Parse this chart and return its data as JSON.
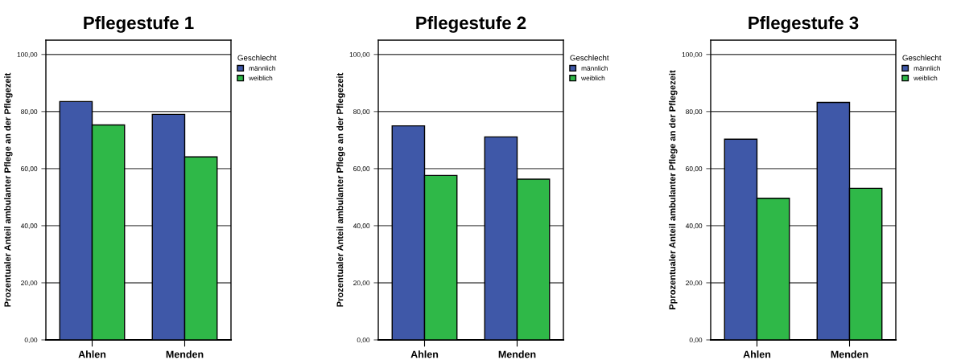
{
  "chart_data": [
    {
      "type": "bar",
      "title": "Pflegestufe 1",
      "ylabel": "Prozentualer Anteil ambulanter Pflege an der Pflegezeit",
      "legend_title": "Geschlecht",
      "legend": "top right",
      "grid": "y",
      "categories": [
        "Ahlen",
        "Menden"
      ],
      "series": [
        {
          "name": "männlich",
          "color": "#3f58a8",
          "values": [
            83.5,
            79.0
          ]
        },
        {
          "name": "weiblich",
          "color": "#2fb848",
          "values": [
            75.3,
            64.1
          ]
        }
      ],
      "ylim": [
        0,
        105
      ],
      "yticks": [
        {
          "value": 0,
          "label": "0,00"
        },
        {
          "value": 20,
          "label": "20,00"
        },
        {
          "value": 40,
          "label": "40,00"
        },
        {
          "value": 60,
          "label": "60,00"
        },
        {
          "value": 80,
          "label": "80,00"
        },
        {
          "value": 100,
          "label": "100,00"
        }
      ]
    },
    {
      "type": "bar",
      "title": "Pflegestufe 2",
      "ylabel": "Prozentualer Anteil ambulanter Pflege an der Pflegezeit",
      "legend_title": "Geschlecht",
      "legend": "top right",
      "grid": "y",
      "categories": [
        "Ahlen",
        "Menden"
      ],
      "series": [
        {
          "name": "männlich",
          "color": "#3f58a8",
          "values": [
            75.0,
            71.1
          ]
        },
        {
          "name": "weiblich",
          "color": "#2fb848",
          "values": [
            57.6,
            56.3
          ]
        }
      ],
      "ylim": [
        0,
        105
      ],
      "yticks": [
        {
          "value": 0,
          "label": "0,00"
        },
        {
          "value": 20,
          "label": "20,00"
        },
        {
          "value": 40,
          "label": "40,00"
        },
        {
          "value": 60,
          "label": "60,00"
        },
        {
          "value": 80,
          "label": "80,00"
        },
        {
          "value": 100,
          "label": "100,00"
        }
      ]
    },
    {
      "type": "bar",
      "title": "Pflegestufe 3",
      "ylabel": "Pprozentualer Anteil ambulanter Pflege an der Pflegezeit",
      "legend_title": "Geschlecht",
      "legend": "top right",
      "grid": "y",
      "categories": [
        "Ahlen",
        "Menden"
      ],
      "series": [
        {
          "name": "männlich",
          "color": "#3f58a8",
          "values": [
            70.3,
            83.2
          ]
        },
        {
          "name": "weiblich",
          "color": "#2fb848",
          "values": [
            49.6,
            53.1
          ]
        }
      ],
      "ylim": [
        0,
        105
      ],
      "yticks": [
        {
          "value": 0,
          "label": "0,00"
        },
        {
          "value": 20,
          "label": "20,00"
        },
        {
          "value": 40,
          "label": "40,00"
        },
        {
          "value": 60,
          "label": "60,00"
        },
        {
          "value": 80,
          "label": "80,00"
        },
        {
          "value": 100,
          "label": "100,00"
        }
      ]
    }
  ]
}
